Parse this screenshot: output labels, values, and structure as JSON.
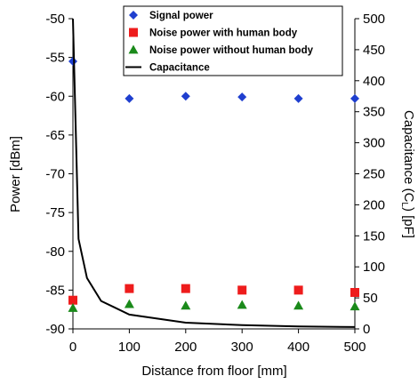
{
  "chart_data": {
    "type": "scatter",
    "xlabel": "Distance from floor [mm]",
    "ylabel_left": "Power [dBm]",
    "ylabel_right": "Capacitance (C",
    "ylabel_right_sub": "L",
    "ylabel_right_suffix": ") [pF]",
    "xlim": [
      0,
      500
    ],
    "ylim_left": [
      -90,
      -50
    ],
    "ylim_right": [
      0,
      500
    ],
    "x_ticks": [
      0,
      100,
      200,
      300,
      400,
      500
    ],
    "y_left_ticks": [
      -90,
      -85,
      -80,
      -75,
      -70,
      -65,
      -60,
      -55,
      -50
    ],
    "y_right_ticks": [
      0,
      50,
      100,
      150,
      200,
      250,
      300,
      350,
      400,
      450,
      500
    ],
    "grid": false,
    "legend_position": "top-right",
    "series": [
      {
        "name": "Signal power",
        "axis": "left",
        "marker": "diamond",
        "color": "#1f3fcf",
        "points": [
          [
            0,
            -55.5
          ],
          [
            100,
            -60.3
          ],
          [
            200,
            -60.0
          ],
          [
            300,
            -60.1
          ],
          [
            400,
            -60.3
          ],
          [
            500,
            -60.3
          ]
        ]
      },
      {
        "name": "Noise power with human body",
        "axis": "left",
        "marker": "square",
        "color": "#ee1c1c",
        "points": [
          [
            0,
            -86.3
          ],
          [
            100,
            -84.8
          ],
          [
            200,
            -84.8
          ],
          [
            300,
            -85.0
          ],
          [
            400,
            -85.0
          ],
          [
            500,
            -85.3
          ]
        ]
      },
      {
        "name": "Noise power without human body",
        "axis": "left",
        "marker": "triangle",
        "color": "#1a8a1a",
        "points": [
          [
            0,
            -87.3
          ],
          [
            100,
            -86.8
          ],
          [
            200,
            -87.0
          ],
          [
            300,
            -86.9
          ],
          [
            400,
            -87.0
          ],
          [
            500,
            -87.1
          ]
        ]
      },
      {
        "name": "Capacitance",
        "axis": "right",
        "marker": "line",
        "color": "#000000",
        "points": [
          [
            0,
            500
          ],
          [
            10,
            145
          ],
          [
            25,
            82
          ],
          [
            50,
            45
          ],
          [
            100,
            23
          ],
          [
            200,
            10
          ],
          [
            300,
            6
          ],
          [
            400,
            4
          ],
          [
            500,
            3
          ]
        ]
      }
    ]
  }
}
